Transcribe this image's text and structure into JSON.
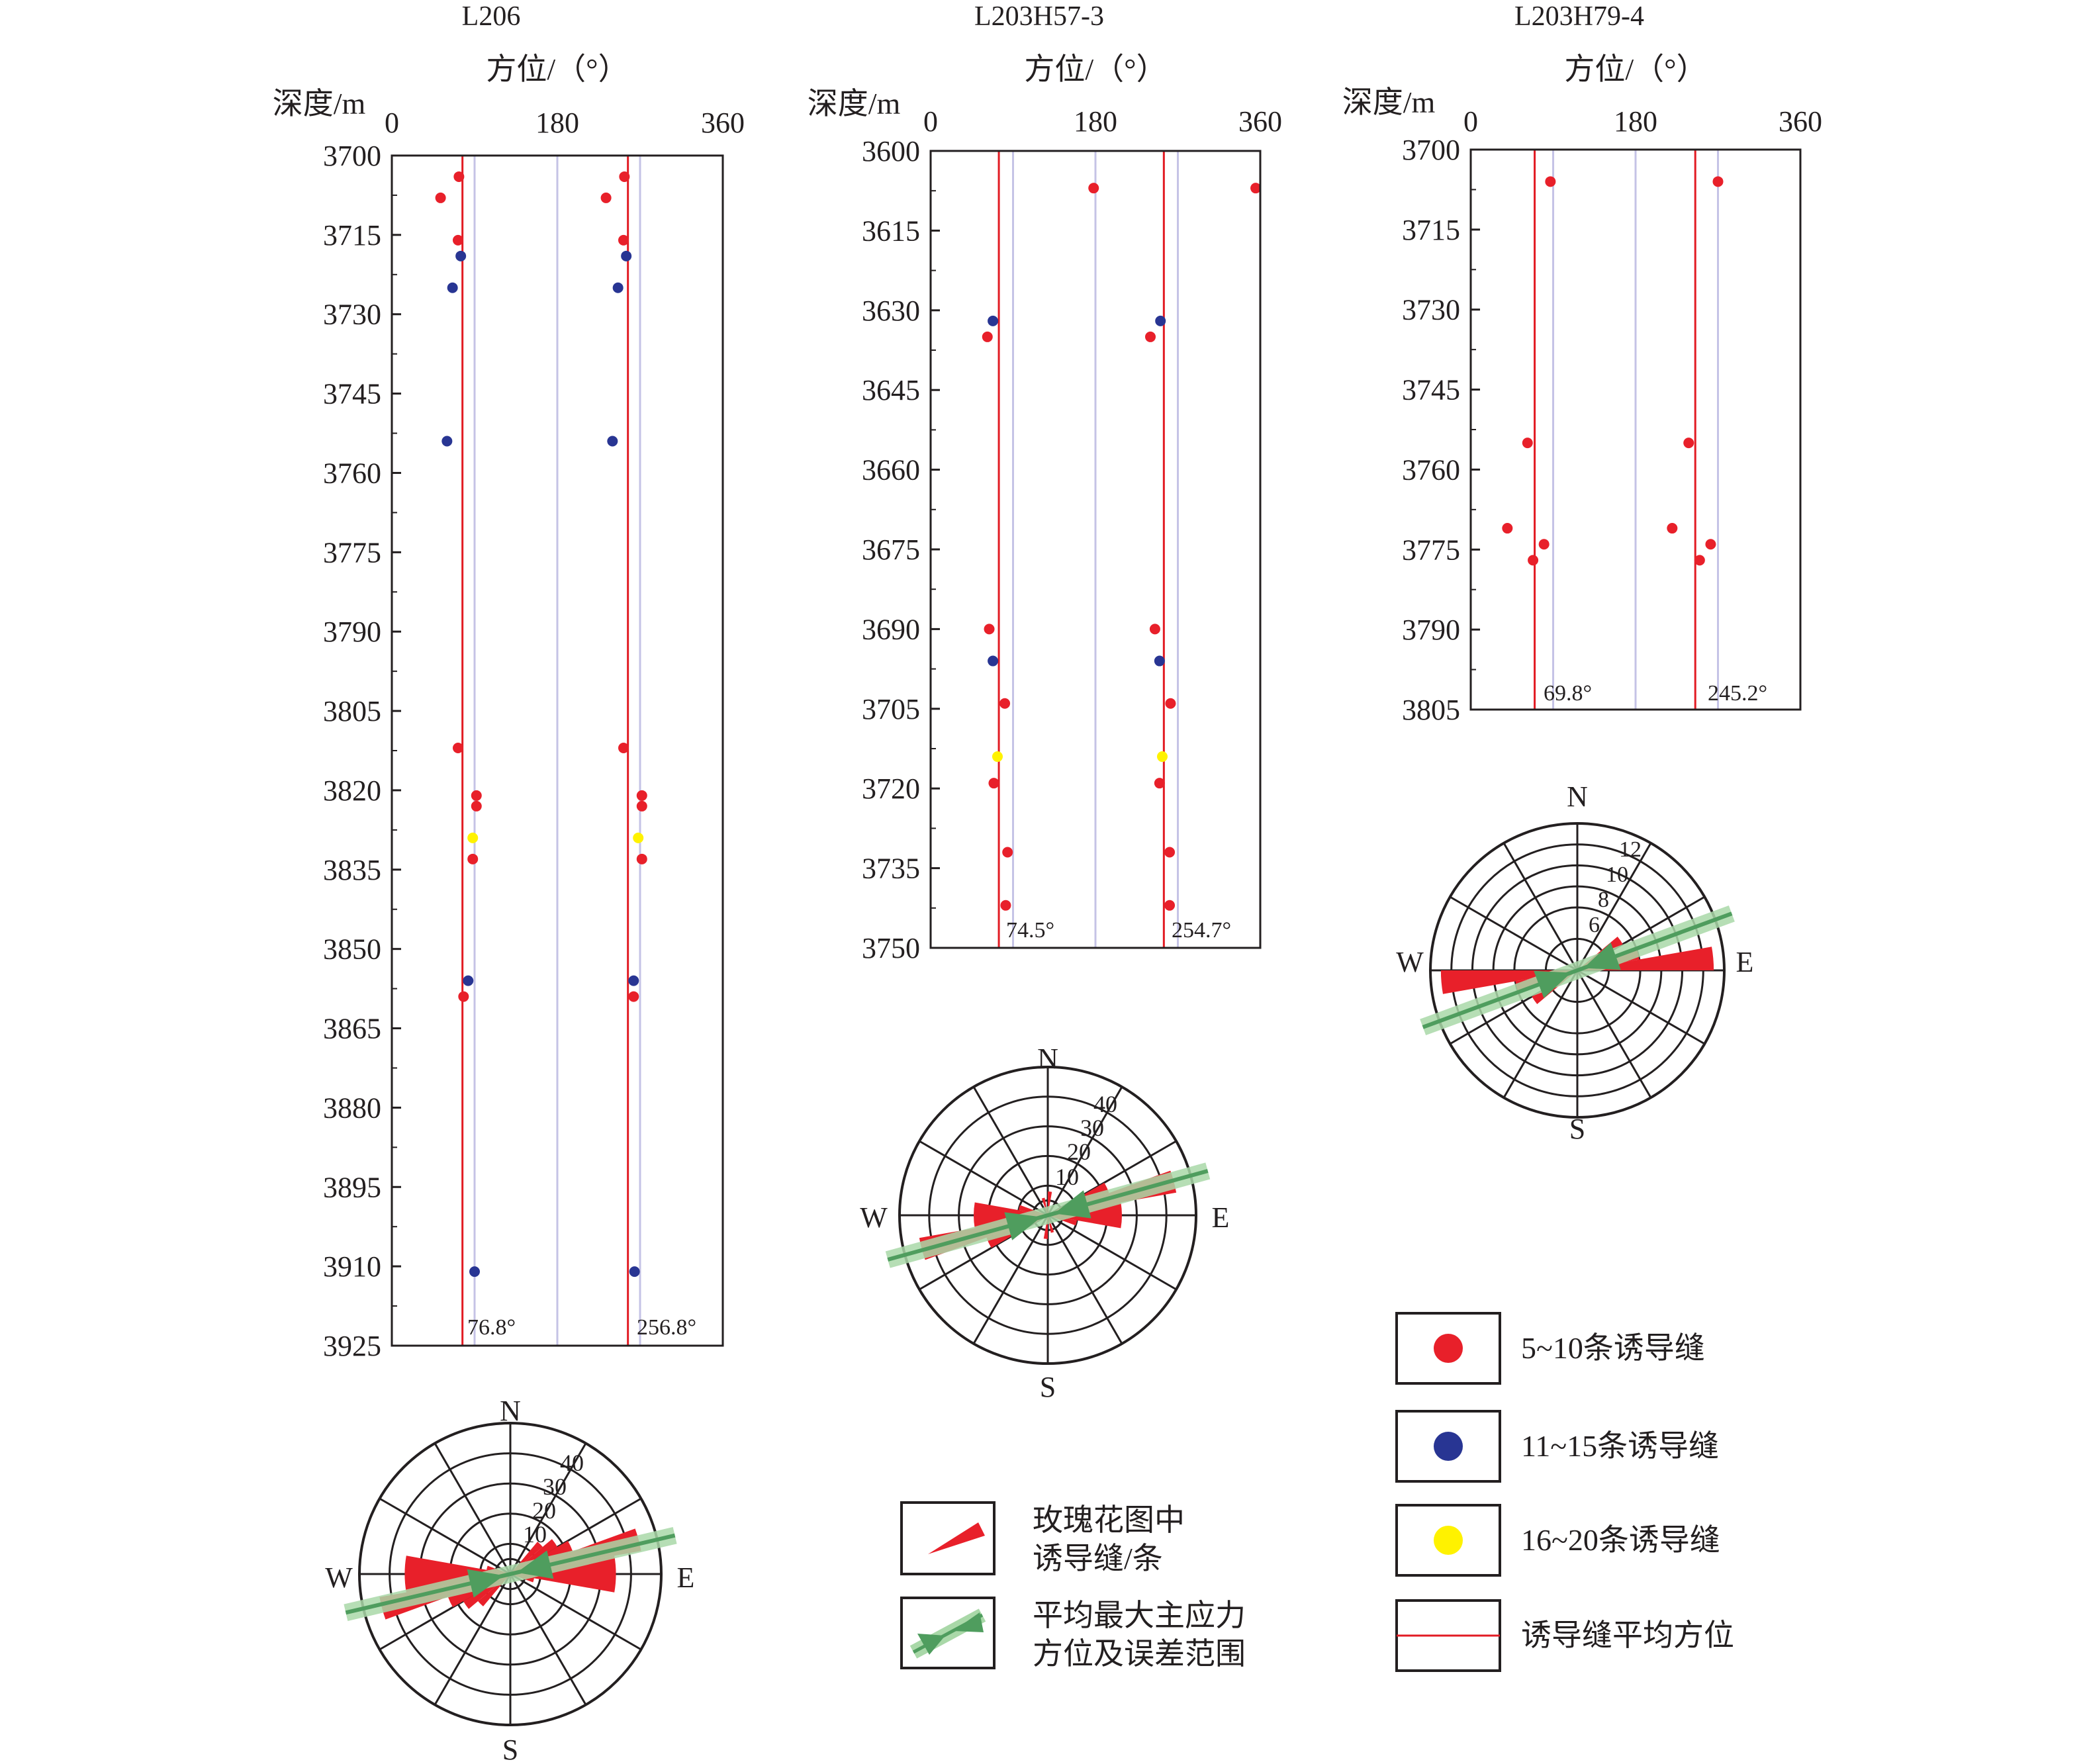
{
  "colors": {
    "count_5_10": "#e8202a",
    "count_11_15": "#283593",
    "count_16_20": "#fff200",
    "mean_line": "#e21b23",
    "ref_line": "#c5c3e6",
    "rose_fill": "#e8202a",
    "stress_arrow": "#4f9d5e",
    "stress_band": "#a9d8a8",
    "frame": "#231f20"
  },
  "depth_axis_label": "深度/m",
  "azimuth_axis_label": "方位/（°）",
  "compass": {
    "n": "N",
    "e": "E",
    "s": "S",
    "w": "W"
  },
  "legend": {
    "rose_label": [
      "玫瑰花图中",
      "诱导缝/条"
    ],
    "stress_label": [
      "平均最大主应力",
      "方位及误差范围"
    ],
    "dot_5_10": "5~10条诱导缝",
    "dot_11_15": "11~15条诱导缝",
    "dot_16_20": "16~20条诱导缝",
    "mean_line": "诱导缝平均方位"
  },
  "chart_data": [
    {
      "type": "scatter",
      "title": "L206",
      "xlabel": "方位/（°）",
      "ylabel": "深度/m",
      "xlim": [
        0,
        360
      ],
      "ylim": [
        3700,
        3925
      ],
      "x_ticks": [
        "0",
        "180",
        "360"
      ],
      "y_ticks": [
        "3700",
        "3715",
        "3730",
        "3745",
        "3760",
        "3775",
        "3790",
        "3805",
        "3820",
        "3835",
        "3850",
        "3865",
        "3880",
        "3895",
        "3910",
        "3925"
      ],
      "y_inverted": true,
      "reference_lines": [
        90,
        180,
        270
      ],
      "mean_azimuths": [
        76.8,
        256.8
      ],
      "mean_labels": [
        "76.8°",
        "256.8°"
      ],
      "legend": "none",
      "points": [
        {
          "az": 73,
          "depth": 3704,
          "cls": "5-10"
        },
        {
          "az": 253,
          "depth": 3704,
          "cls": "5-10"
        },
        {
          "az": 53,
          "depth": 3708,
          "cls": "5-10"
        },
        {
          "az": 233,
          "depth": 3708,
          "cls": "5-10"
        },
        {
          "az": 72,
          "depth": 3716,
          "cls": "5-10"
        },
        {
          "az": 252,
          "depth": 3716,
          "cls": "5-10"
        },
        {
          "az": 75,
          "depth": 3719,
          "cls": "11-15"
        },
        {
          "az": 255,
          "depth": 3719,
          "cls": "11-15"
        },
        {
          "az": 66,
          "depth": 3725,
          "cls": "11-15"
        },
        {
          "az": 246,
          "depth": 3725,
          "cls": "11-15"
        },
        {
          "az": 60,
          "depth": 3754,
          "cls": "11-15"
        },
        {
          "az": 240,
          "depth": 3754,
          "cls": "11-15"
        },
        {
          "az": 72,
          "depth": 3812,
          "cls": "5-10"
        },
        {
          "az": 252,
          "depth": 3812,
          "cls": "5-10"
        },
        {
          "az": 92,
          "depth": 3821,
          "cls": "5-10"
        },
        {
          "az": 272,
          "depth": 3821,
          "cls": "5-10"
        },
        {
          "az": 92,
          "depth": 3823,
          "cls": "5-10"
        },
        {
          "az": 272,
          "depth": 3823,
          "cls": "5-10"
        },
        {
          "az": 88,
          "depth": 3829,
          "cls": "16-20"
        },
        {
          "az": 268,
          "depth": 3829,
          "cls": "16-20"
        },
        {
          "az": 88,
          "depth": 3833,
          "cls": "5-10"
        },
        {
          "az": 272,
          "depth": 3833,
          "cls": "5-10"
        },
        {
          "az": 83,
          "depth": 3856,
          "cls": "11-15"
        },
        {
          "az": 263,
          "depth": 3856,
          "cls": "11-15"
        },
        {
          "az": 78,
          "depth": 3859,
          "cls": "5-10"
        },
        {
          "az": 263,
          "depth": 3859,
          "cls": "5-10"
        },
        {
          "az": 90,
          "depth": 3911,
          "cls": "11-15"
        },
        {
          "az": 264,
          "depth": 3911,
          "cls": "11-15"
        }
      ],
      "rose": {
        "rings": [
          10,
          20,
          30,
          40
        ],
        "ring_max": 50,
        "petals": [
          {
            "az": 75,
            "count": 44
          },
          {
            "az": 255,
            "count": 44
          },
          {
            "az": 85,
            "count": 35
          },
          {
            "az": 265,
            "count": 35
          },
          {
            "az": 95,
            "count": 35
          },
          {
            "az": 275,
            "count": 35
          },
          {
            "az": 65,
            "count": 22
          },
          {
            "az": 245,
            "count": 22
          },
          {
            "az": 55,
            "count": 18
          },
          {
            "az": 235,
            "count": 18
          },
          {
            "az": 45,
            "count": 14
          },
          {
            "az": 225,
            "count": 14
          },
          {
            "az": 105,
            "count": 8
          },
          {
            "az": 285,
            "count": 8
          }
        ],
        "stress_az": 76.8
      }
    },
    {
      "type": "scatter",
      "title": "L203H57-3",
      "xlabel": "方位/（°）",
      "ylabel": "深度/m",
      "xlim": [
        0,
        360
      ],
      "ylim": [
        3600,
        3750
      ],
      "x_ticks": [
        "0",
        "180",
        "360"
      ],
      "y_ticks": [
        "3600",
        "3615",
        "3630",
        "3645",
        "3660",
        "3675",
        "3690",
        "3705",
        "3720",
        "3735",
        "3750"
      ],
      "y_inverted": true,
      "reference_lines": [
        90,
        180,
        270
      ],
      "mean_azimuths": [
        74.5,
        254.7
      ],
      "mean_labels": [
        "74.5°",
        "254.7°"
      ],
      "legend": "none",
      "points": [
        {
          "az": 178,
          "depth": 3607,
          "cls": "5-10"
        },
        {
          "az": 355,
          "depth": 3607,
          "cls": "5-10"
        },
        {
          "az": 68,
          "depth": 3632,
          "cls": "11-15"
        },
        {
          "az": 251,
          "depth": 3632,
          "cls": "11-15"
        },
        {
          "az": 62,
          "depth": 3635,
          "cls": "5-10"
        },
        {
          "az": 240,
          "depth": 3635,
          "cls": "5-10"
        },
        {
          "az": 64,
          "depth": 3690,
          "cls": "5-10"
        },
        {
          "az": 245,
          "depth": 3690,
          "cls": "5-10"
        },
        {
          "az": 68,
          "depth": 3696,
          "cls": "11-15"
        },
        {
          "az": 250,
          "depth": 3696,
          "cls": "11-15"
        },
        {
          "az": 81,
          "depth": 3704,
          "cls": "5-10"
        },
        {
          "az": 262,
          "depth": 3704,
          "cls": "5-10"
        },
        {
          "az": 73,
          "depth": 3714,
          "cls": "16-20"
        },
        {
          "az": 253,
          "depth": 3714,
          "cls": "16-20"
        },
        {
          "az": 69,
          "depth": 3719,
          "cls": "5-10"
        },
        {
          "az": 250,
          "depth": 3719,
          "cls": "5-10"
        },
        {
          "az": 84,
          "depth": 3732,
          "cls": "5-10"
        },
        {
          "az": 261,
          "depth": 3732,
          "cls": "5-10"
        },
        {
          "az": 82,
          "depth": 3742,
          "cls": "5-10"
        },
        {
          "az": 261,
          "depth": 3742,
          "cls": "5-10"
        }
      ],
      "rose": {
        "rings": [
          10,
          20,
          30,
          40
        ],
        "ring_max": 50,
        "petals": [
          {
            "az": 75,
            "count": 44
          },
          {
            "az": 255,
            "count": 44
          },
          {
            "az": 85,
            "count": 25
          },
          {
            "az": 265,
            "count": 25
          },
          {
            "az": 95,
            "count": 25
          },
          {
            "az": 275,
            "count": 25
          },
          {
            "az": 65,
            "count": 22
          },
          {
            "az": 245,
            "count": 22
          },
          {
            "az": 105,
            "count": 10
          },
          {
            "az": 285,
            "count": 10
          },
          {
            "az": 5,
            "count": 8
          },
          {
            "az": 185,
            "count": 8
          },
          {
            "az": 345,
            "count": 6
          },
          {
            "az": 165,
            "count": 6
          }
        ],
        "stress_az": 74.5
      }
    },
    {
      "type": "scatter",
      "title": "L203H79-4",
      "xlabel": "方位/（°）",
      "ylabel": "深度/m",
      "xlim": [
        0,
        360
      ],
      "ylim": [
        3700,
        3805
      ],
      "x_ticks": [
        "0",
        "180",
        "360"
      ],
      "y_ticks": [
        "3700",
        "3715",
        "3730",
        "3745",
        "3760",
        "3775",
        "3790",
        "3805"
      ],
      "y_inverted": true,
      "reference_lines": [
        90,
        180,
        270
      ],
      "mean_azimuths": [
        69.8,
        245.2
      ],
      "mean_labels": [
        "69.8°",
        "245.2°"
      ],
      "legend": "none",
      "points": [
        {
          "az": 87,
          "depth": 3706,
          "cls": "5-10"
        },
        {
          "az": 270,
          "depth": 3706,
          "cls": "5-10"
        },
        {
          "az": 62,
          "depth": 3755,
          "cls": "5-10"
        },
        {
          "az": 238,
          "depth": 3755,
          "cls": "5-10"
        },
        {
          "az": 40,
          "depth": 3771,
          "cls": "5-10"
        },
        {
          "az": 220,
          "depth": 3771,
          "cls": "5-10"
        },
        {
          "az": 80,
          "depth": 3774,
          "cls": "5-10"
        },
        {
          "az": 262,
          "depth": 3774,
          "cls": "5-10"
        },
        {
          "az": 68,
          "depth": 3777,
          "cls": "5-10"
        },
        {
          "az": 250,
          "depth": 3777,
          "cls": "5-10"
        }
      ],
      "rose": {
        "rings": [
          6,
          8,
          10,
          12
        ],
        "ring_max": 14,
        "petals": [
          {
            "az": 85,
            "count": 13
          },
          {
            "az": 265,
            "count": 13
          },
          {
            "az": 75,
            "count": 6
          },
          {
            "az": 255,
            "count": 6
          },
          {
            "az": 55,
            "count": 5
          },
          {
            "az": 235,
            "count": 5
          }
        ],
        "stress_az": 69.8
      }
    }
  ]
}
